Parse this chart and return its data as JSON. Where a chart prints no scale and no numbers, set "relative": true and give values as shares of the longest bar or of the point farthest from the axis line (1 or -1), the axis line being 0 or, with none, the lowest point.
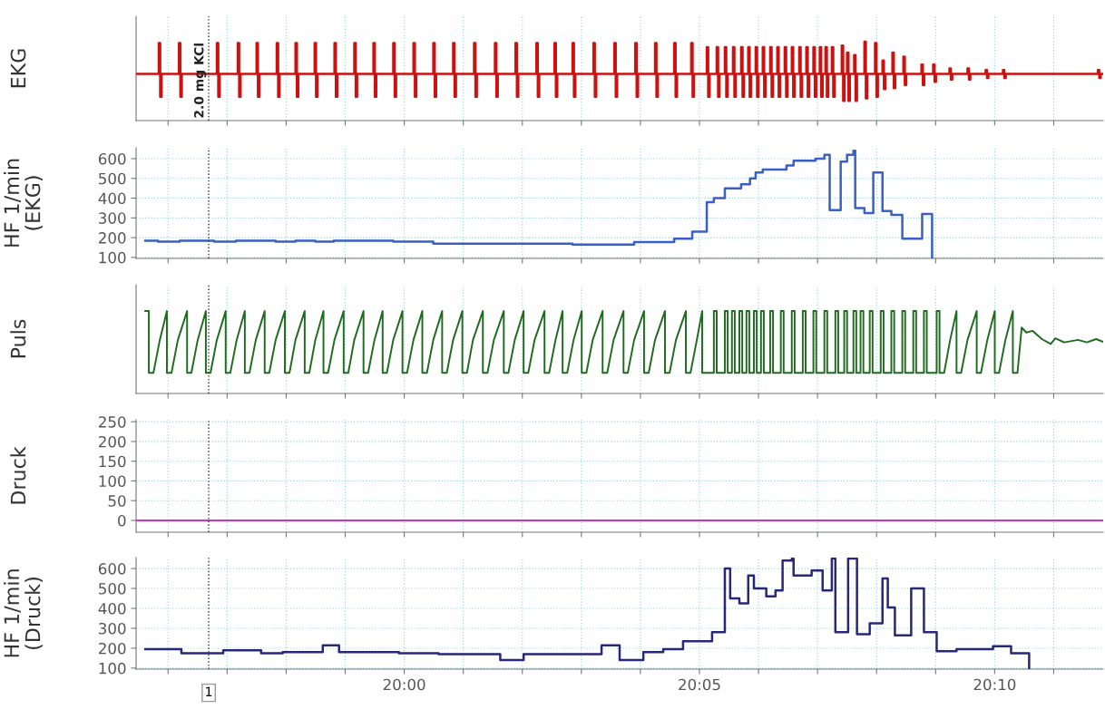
{
  "chart_data": [
    {
      "type": "step",
      "ylabel": "EKG",
      "relative": true,
      "color": "#cc1111",
      "grid": "x",
      "tick_labels": false,
      "xlim": [
        19.9243,
        20.1973
      ],
      "xticks": [
        {
          "value": 19.933333,
          "label": null
        },
        {
          "value": 19.95,
          "label": null
        },
        {
          "value": 19.966667,
          "label": null
        },
        {
          "value": 19.983333,
          "label": null
        },
        {
          "value": 20,
          "label": null
        },
        {
          "value": 20.016667,
          "label": null
        },
        {
          "value": 20.033333,
          "label": null
        },
        {
          "value": 20.05,
          "label": null
        },
        {
          "value": 20.066667,
          "label": null
        },
        {
          "value": 20.083333,
          "label": null
        },
        {
          "value": 20.1,
          "label": null
        },
        {
          "value": 20.116667,
          "label": null
        },
        {
          "value": 20.133333,
          "label": null
        },
        {
          "value": 20.15,
          "label": null
        },
        {
          "value": 20.166667,
          "label": null
        },
        {
          "value": 20.183333,
          "label": null
        }
      ],
      "ref_lines": [
        {
          "axis": "x",
          "value": 19.9448,
          "label": "2.0 mg KCl",
          "color": "#333333",
          "line_style": "dotted"
        }
      ],
      "x": [
        19.9243,
        19.9307,
        19.9311,
        19.9315,
        19.9364,
        19.9368,
        19.9372,
        19.9471,
        19.9475,
        19.9479,
        19.953,
        19.9534,
        19.9538,
        19.9583,
        19.9587,
        19.9591,
        19.964,
        19.9644,
        19.9648,
        19.9693,
        19.9697,
        19.9701,
        19.9747,
        19.9751,
        19.9755,
        19.9803,
        19.9807,
        19.9811,
        19.9859,
        19.9863,
        19.9867,
        19.9913,
        19.9917,
        19.9921,
        19.9969,
        19.9973,
        19.9977,
        20.0026,
        20.003,
        20.0034,
        20.0082,
        20.0086,
        20.009,
        20.0138,
        20.0142,
        20.0146,
        20.0197,
        20.0201,
        20.0205,
        20.0256,
        20.026,
        20.0264,
        20.0314,
        20.0318,
        20.0322,
        20.0373,
        20.0377,
        20.0381,
        20.0424,
        20.0428,
        20.0432,
        20.0475,
        20.0479,
        20.0483,
        20.0534,
        20.0538,
        20.0542,
        20.0593,
        20.0597,
        20.0601,
        20.0652,
        20.0656,
        20.066,
        20.0708,
        20.0712,
        20.0716,
        20.0762,
        20.0766,
        20.077,
        20.081,
        20.0814,
        20.0818,
        20.0854,
        20.0858,
        20.0862,
        20.0882,
        20.0886,
        20.089,
        20.0905,
        20.0909,
        20.0913,
        20.0928,
        20.0932,
        20.0936,
        20.0951,
        20.0955,
        20.0959,
        20.0971,
        20.0975,
        20.0979,
        20.0992,
        20.0996,
        20.1,
        20.1012,
        20.1016,
        20.102,
        20.1033,
        20.1037,
        20.1041,
        20.1053,
        20.1057,
        20.1061,
        20.1074,
        20.1078,
        20.1082,
        20.1094,
        20.1098,
        20.1102,
        20.1115,
        20.1119,
        20.1123,
        20.1135,
        20.1139,
        20.1143,
        20.1155,
        20.1159,
        20.1163,
        20.1173,
        20.1177,
        20.1181,
        20.1189,
        20.1193,
        20.1197,
        20.1207,
        20.1211,
        20.1215,
        20.1235,
        20.1239,
        20.1243,
        20.125,
        20.1254,
        20.1258,
        20.127,
        20.1274,
        20.1278,
        20.1299,
        20.1303,
        20.1307,
        20.1329,
        20.1333,
        20.1337,
        20.135,
        20.1354,
        20.1358,
        20.1378,
        20.1382,
        20.1386,
        20.1409,
        20.1413,
        20.1417,
        20.146,
        20.1464,
        20.1468,
        20.1493,
        20.1497,
        20.1501,
        20.1539,
        20.1543,
        20.1547,
        20.159,
        20.1594,
        20.1598,
        20.1641,
        20.1645,
        20.1649,
        20.169,
        20.1694,
        20.1698,
        20.1958,
        20.1962,
        20.1966,
        20.1973
      ],
      "values": [
        0.59,
        0.98,
        0.3,
        0.59,
        0.98,
        0.3,
        0.59,
        0.98,
        0.3,
        0.59,
        0.98,
        0.3,
        0.59,
        0.98,
        0.3,
        0.59,
        0.98,
        0.3,
        0.59,
        0.98,
        0.3,
        0.59,
        0.98,
        0.3,
        0.59,
        0.98,
        0.3,
        0.59,
        0.98,
        0.3,
        0.59,
        0.98,
        0.3,
        0.59,
        0.98,
        0.3,
        0.59,
        0.98,
        0.3,
        0.59,
        0.98,
        0.3,
        0.59,
        0.98,
        0.3,
        0.59,
        0.98,
        0.3,
        0.59,
        0.98,
        0.3,
        0.59,
        0.98,
        0.3,
        0.59,
        0.98,
        0.3,
        0.59,
        0.98,
        0.3,
        0.59,
        0.98,
        0.3,
        0.59,
        0.98,
        0.3,
        0.59,
        0.98,
        0.3,
        0.59,
        0.98,
        0.3,
        0.59,
        0.98,
        0.3,
        0.59,
        0.98,
        0.3,
        0.59,
        0.98,
        0.3,
        0.59,
        0.93,
        0.3,
        0.59,
        0.93,
        0.3,
        0.59,
        0.93,
        0.3,
        0.59,
        0.93,
        0.3,
        0.59,
        0.93,
        0.3,
        0.59,
        0.93,
        0.3,
        0.59,
        0.93,
        0.3,
        0.59,
        0.93,
        0.3,
        0.59,
        0.93,
        0.3,
        0.59,
        0.93,
        0.3,
        0.59,
        0.93,
        0.3,
        0.59,
        0.93,
        0.3,
        0.59,
        0.93,
        0.3,
        0.59,
        0.93,
        0.3,
        0.59,
        0.93,
        0.3,
        0.59,
        0.93,
        0.3,
        0.59,
        0.93,
        0.3,
        0.59,
        0.93,
        0.3,
        0.59,
        0.95,
        0.25,
        0.59,
        0.86,
        0.25,
        0.59,
        0.83,
        0.25,
        0.59,
        1.0,
        0.28,
        0.59,
        0.98,
        0.3,
        0.59,
        0.76,
        0.4,
        0.59,
        0.86,
        0.41,
        0.59,
        0.81,
        0.45,
        0.59,
        0.71,
        0.45,
        0.59,
        0.71,
        0.49,
        0.59,
        0.66,
        0.52,
        0.59,
        0.66,
        0.52,
        0.59,
        0.64,
        0.54,
        0.59,
        0.64,
        0.54,
        0.59,
        0.64,
        0.54,
        0.59,
        0.59
      ]
    },
    {
      "type": "step",
      "ylabel": "HF 1/min\n(EKG)",
      "color": "#3a5fc5",
      "grid": true,
      "tick_labels": "y",
      "xlim": [
        19.9243,
        20.1973
      ],
      "xticks": [
        {
          "value": 19.933333,
          "label": null
        },
        {
          "value": 19.95,
          "label": null
        },
        {
          "value": 19.966667,
          "label": null
        },
        {
          "value": 19.983333,
          "label": null
        },
        {
          "value": 20,
          "label": null
        },
        {
          "value": 20.016667,
          "label": null
        },
        {
          "value": 20.033333,
          "label": null
        },
        {
          "value": 20.05,
          "label": null
        },
        {
          "value": 20.066667,
          "label": null
        },
        {
          "value": 20.083333,
          "label": null
        },
        {
          "value": 20.1,
          "label": null
        },
        {
          "value": 20.116667,
          "label": null
        },
        {
          "value": 20.133333,
          "label": null
        },
        {
          "value": 20.15,
          "label": null
        },
        {
          "value": 20.166667,
          "label": null
        },
        {
          "value": 20.183333,
          "label": null
        }
      ],
      "ylim": [
        95,
        655
      ],
      "yticks": [
        100,
        200,
        300,
        400,
        500,
        600
      ],
      "ref_lines": [
        {
          "axis": "x",
          "value": 19.9448,
          "color": "#333333",
          "line_style": "dotted"
        }
      ],
      "x": [
        19.9269,
        19.9305,
        19.9366,
        19.9463,
        19.9525,
        19.9637,
        19.9693,
        19.9749,
        19.9801,
        19.9969,
        20.0082,
        20.0475,
        20.0649,
        20.0762,
        20.0813,
        20.0854,
        20.0874,
        20.0905,
        20.0951,
        20.0976,
        20.0992,
        20.1012,
        20.1079,
        20.1099,
        20.1161,
        20.1186,
        20.1201,
        20.1232,
        20.125,
        20.1268,
        20.1273,
        20.1299,
        20.1324,
        20.135,
        20.1375,
        20.1406,
        20.1462,
        20.149
      ],
      "values": [
        185,
        180,
        185,
        180,
        185,
        180,
        185,
        180,
        185,
        180,
        170,
        165,
        178,
        195,
        230,
        380,
        400,
        450,
        470,
        500,
        530,
        545,
        565,
        590,
        600,
        620,
        340,
        585,
        620,
        640,
        350,
        325,
        530,
        335,
        315,
        195,
        320,
        100
      ]
    },
    {
      "type": "line",
      "ylabel": "Puls",
      "relative": true,
      "color": "#1f6b1f",
      "grid": "x",
      "tick_labels": false,
      "xlim": [
        19.9243,
        20.1973
      ],
      "xticks": [
        {
          "value": 19.933333,
          "label": null
        },
        {
          "value": 19.95,
          "label": null
        },
        {
          "value": 19.966667,
          "label": null
        },
        {
          "value": 19.983333,
          "label": null
        },
        {
          "value": 20,
          "label": null
        },
        {
          "value": 20.016667,
          "label": null
        },
        {
          "value": 20.033333,
          "label": null
        },
        {
          "value": 20.05,
          "label": null
        },
        {
          "value": 20.066667,
          "label": null
        },
        {
          "value": 20.083333,
          "label": null
        },
        {
          "value": 20.1,
          "label": null
        },
        {
          "value": 20.116667,
          "label": null
        },
        {
          "value": 20.133333,
          "label": null
        },
        {
          "value": 20.15,
          "label": null
        },
        {
          "value": 20.166667,
          "label": null
        },
        {
          "value": 20.183333,
          "label": null
        }
      ],
      "ref_lines": [
        {
          "axis": "x",
          "value": 19.9448,
          "color": "#333333",
          "line_style": "dotted"
        }
      ],
      "x": [
        19.9269,
        19.9279,
        19.9279,
        19.9292,
        19.931,
        19.933,
        19.933,
        19.9343,
        19.9361,
        19.9387,
        19.9387,
        19.9399,
        19.9417,
        19.944,
        19.944,
        19.9453,
        19.9471,
        19.9496,
        19.9496,
        19.9509,
        19.9527,
        19.955,
        19.955,
        19.9563,
        19.9581,
        19.9606,
        19.9606,
        19.9619,
        19.9637,
        19.9663,
        19.9663,
        19.9676,
        19.9693,
        19.9719,
        19.9719,
        19.9732,
        19.9749,
        19.9772,
        19.9772,
        19.9785,
        19.9803,
        19.9829,
        19.9829,
        19.9842,
        19.9859,
        19.9885,
        19.9885,
        19.9898,
        19.9916,
        19.9939,
        19.9939,
        19.9951,
        19.9969,
        19.9995,
        19.9995,
        20.0008,
        20.0026,
        20.0051,
        20.0051,
        20.0064,
        20.0082,
        20.0107,
        20.0107,
        20.012,
        20.0138,
        20.0164,
        20.0164,
        20.0177,
        20.0194,
        20.0222,
        20.0222,
        20.0235,
        20.0253,
        20.0281,
        20.0281,
        20.0294,
        20.0312,
        20.0337,
        20.0337,
        20.035,
        20.0368,
        20.0396,
        20.0396,
        20.0409,
        20.0427,
        20.0447,
        20.0447,
        20.046,
        20.0478,
        20.0501,
        20.0501,
        20.0514,
        20.0532,
        20.056,
        20.056,
        20.0573,
        20.0591,
        20.0619,
        20.0619,
        20.0631,
        20.0649,
        20.0677,
        20.0677,
        20.069,
        20.0708,
        20.0736,
        20.0736,
        20.0749,
        20.0767,
        20.0795,
        20.0795,
        20.0808,
        20.0826,
        20.0841,
        20.0841,
        20.0854,
        20.0874,
        20.0874,
        20.0882,
        20.0882,
        20.0905,
        20.0905,
        20.0913,
        20.0913,
        20.0925,
        20.0925,
        20.0933,
        20.0933,
        20.0946,
        20.0946,
        20.0954,
        20.0954,
        20.0966,
        20.0966,
        20.0974,
        20.0974,
        20.0987,
        20.0987,
        20.0995,
        20.0995,
        20.1007,
        20.1007,
        20.1015,
        20.1015,
        20.1033,
        20.1033,
        20.1041,
        20.1041,
        20.1063,
        20.1063,
        20.1071,
        20.1071,
        20.1094,
        20.1094,
        20.1102,
        20.1102,
        20.1125,
        20.1125,
        20.1133,
        20.1133,
        20.1155,
        20.1155,
        20.1163,
        20.1163,
        20.1186,
        20.1186,
        20.1194,
        20.1194,
        20.1217,
        20.1217,
        20.1225,
        20.1225,
        20.1242,
        20.1242,
        20.125,
        20.125,
        20.1268,
        20.1268,
        20.1276,
        20.1276,
        20.1288,
        20.1288,
        20.1296,
        20.1296,
        20.1314,
        20.1314,
        20.1322,
        20.1322,
        20.1345,
        20.1345,
        20.1353,
        20.1353,
        20.1375,
        20.1375,
        20.1383,
        20.1383,
        20.1406,
        20.1406,
        20.1414,
        20.1414,
        20.1437,
        20.1437,
        20.1445,
        20.1445,
        20.1467,
        20.1467,
        20.1475,
        20.1475,
        20.1503,
        20.1503,
        20.1511,
        20.1511,
        20.1524,
        20.1541,
        20.1559,
        20.1559,
        20.1572,
        20.159,
        20.1616,
        20.1616,
        20.1628,
        20.1646,
        20.1667,
        20.1667,
        20.1679,
        20.1697,
        20.1718,
        20.1718,
        20.1731,
        20.1743,
        20.1756,
        20.1774,
        20.18,
        20.1825,
        20.1838,
        20.1863,
        20.1902,
        20.1927,
        20.1953,
        20.1971
      ],
      "values": [
        1.0,
        1.0,
        0.25,
        0.25,
        0.65,
        1.0,
        0.25,
        0.25,
        0.65,
        1.0,
        0.25,
        0.25,
        0.65,
        1.0,
        0.25,
        0.25,
        0.65,
        1.0,
        0.25,
        0.25,
        0.65,
        1.0,
        0.25,
        0.25,
        0.65,
        1.0,
        0.25,
        0.25,
        0.65,
        1.0,
        0.25,
        0.25,
        0.65,
        1.0,
        0.25,
        0.25,
        0.65,
        1.0,
        0.25,
        0.25,
        0.65,
        1.0,
        0.25,
        0.25,
        0.65,
        1.0,
        0.25,
        0.25,
        0.65,
        1.0,
        0.25,
        0.25,
        0.65,
        1.0,
        0.25,
        0.25,
        0.65,
        1.0,
        0.25,
        0.25,
        0.65,
        1.0,
        0.25,
        0.25,
        0.65,
        1.0,
        0.25,
        0.25,
        0.65,
        1.0,
        0.25,
        0.25,
        0.65,
        1.0,
        0.25,
        0.25,
        0.65,
        1.0,
        0.25,
        0.25,
        0.65,
        1.0,
        0.25,
        0.25,
        0.65,
        1.0,
        0.25,
        0.25,
        0.65,
        1.0,
        0.25,
        0.25,
        0.65,
        1.0,
        0.25,
        0.25,
        0.65,
        1.0,
        0.25,
        0.25,
        0.65,
        1.0,
        0.25,
        0.25,
        0.65,
        1.0,
        0.25,
        0.25,
        0.65,
        1.0,
        0.25,
        0.25,
        0.65,
        1.0,
        0.25,
        0.25,
        0.25,
        1.0,
        1.0,
        0.25,
        0.25,
        1.0,
        1.0,
        0.25,
        0.25,
        1.0,
        1.0,
        0.25,
        0.25,
        1.0,
        1.0,
        0.25,
        0.25,
        1.0,
        1.0,
        0.25,
        0.25,
        1.0,
        1.0,
        0.25,
        0.25,
        1.0,
        1.0,
        0.25,
        0.25,
        1.0,
        1.0,
        0.25,
        0.25,
        1.0,
        1.0,
        0.25,
        0.25,
        1.0,
        1.0,
        0.25,
        0.25,
        1.0,
        1.0,
        0.25,
        0.25,
        1.0,
        1.0,
        0.25,
        0.25,
        1.0,
        1.0,
        0.25,
        0.25,
        1.0,
        1.0,
        0.25,
        0.25,
        1.0,
        1.0,
        0.25,
        0.25,
        1.0,
        1.0,
        0.25,
        0.25,
        1.0,
        1.0,
        0.25,
        0.25,
        1.0,
        1.0,
        0.25,
        0.25,
        1.0,
        1.0,
        0.25,
        0.25,
        1.0,
        1.0,
        0.25,
        0.25,
        1.0,
        1.0,
        0.25,
        0.25,
        1.0,
        1.0,
        0.25,
        0.25,
        1.0,
        1.0,
        0.25,
        0.25,
        1.0,
        1.0,
        0.25,
        0.25,
        0.65,
        1.0,
        0.25,
        0.25,
        0.65,
        1.0,
        0.25,
        0.25,
        0.65,
        1.0,
        0.25,
        0.25,
        0.65,
        1.0,
        0.25,
        0.25,
        0.8,
        0.74,
        0.76,
        0.66,
        0.6,
        0.67,
        0.62,
        0.65,
        0.62,
        0.66,
        0.63
      ]
    },
    {
      "type": "line",
      "ylabel": "Druck",
      "color": "#cc33cc",
      "grid": true,
      "tick_labels": "y",
      "xlim": [
        19.9243,
        20.1973
      ],
      "xticks": [
        {
          "value": 19.933333,
          "label": null
        },
        {
          "value": 19.95,
          "label": null
        },
        {
          "value": 19.966667,
          "label": null
        },
        {
          "value": 19.983333,
          "label": null
        },
        {
          "value": 20,
          "label": null
        },
        {
          "value": 20.016667,
          "label": null
        },
        {
          "value": 20.033333,
          "label": null
        },
        {
          "value": 20.05,
          "label": null
        },
        {
          "value": 20.066667,
          "label": null
        },
        {
          "value": 20.083333,
          "label": null
        },
        {
          "value": 20.1,
          "label": null
        },
        {
          "value": 20.116667,
          "label": null
        },
        {
          "value": 20.133333,
          "label": null
        },
        {
          "value": 20.15,
          "label": null
        },
        {
          "value": 20.166667,
          "label": null
        },
        {
          "value": 20.183333,
          "label": null
        }
      ],
      "ylim": [
        -30,
        255
      ],
      "yticks": [
        0,
        50,
        100,
        150,
        200,
        250
      ],
      "ref_lines": [
        {
          "axis": "x",
          "value": 19.9448,
          "color": "#333333",
          "line_style": "dotted"
        }
      ],
      "x": [
        19.9243,
        20.1973
      ],
      "values": [
        0,
        0
      ]
    },
    {
      "type": "step",
      "ylabel": "HF 1/min\n(Druck)",
      "color": "#28287a",
      "grid": true,
      "xlim": [
        19.9243,
        20.1973
      ],
      "xticks": [
        {
          "value": 19.933333,
          "label": null
        },
        {
          "value": 19.95,
          "label": null
        },
        {
          "value": 19.966667,
          "label": null
        },
        {
          "value": 19.983333,
          "label": null
        },
        {
          "value": 20,
          "label": "20:00"
        },
        {
          "value": 20.016667,
          "label": null
        },
        {
          "value": 20.033333,
          "label": null
        },
        {
          "value": 20.05,
          "label": null
        },
        {
          "value": 20.066667,
          "label": null
        },
        {
          "value": 20.083333,
          "label": "20:05"
        },
        {
          "value": 20.1,
          "label": null
        },
        {
          "value": 20.116667,
          "label": null
        },
        {
          "value": 20.133333,
          "label": null
        },
        {
          "value": 20.15,
          "label": null
        },
        {
          "value": 20.166667,
          "label": "20:10"
        },
        {
          "value": 20.183333,
          "label": null
        }
      ],
      "ylim": [
        95,
        655
      ],
      "yticks": [
        100,
        200,
        300,
        400,
        500,
        600
      ],
      "ref_lines": [
        {
          "axis": "x",
          "value": 19.9448,
          "color": "#333333",
          "line_style": "dotted"
        }
      ],
      "annotations": [
        "1"
      ],
      "x": [
        19.9269,
        19.9371,
        19.9489,
        19.9596,
        19.9657,
        19.977,
        19.9816,
        19.9985,
        20.0097,
        20.0271,
        20.0337,
        20.0557,
        20.0608,
        20.0675,
        20.0731,
        20.0787,
        20.0869,
        20.0905,
        20.092,
        20.0946,
        20.0971,
        20.0987,
        20.1022,
        20.1048,
        20.1068,
        20.1094,
        20.1099,
        20.115,
        20.1181,
        20.1207,
        20.1217,
        20.1253,
        20.1278,
        20.1314,
        20.135,
        20.1365,
        20.1385,
        20.1431,
        20.1467,
        20.1503,
        20.1559,
        20.1662,
        20.1713,
        20.1764
      ],
      "values": [
        195,
        175,
        190,
        175,
        180,
        215,
        180,
        175,
        170,
        140,
        170,
        215,
        140,
        180,
        195,
        235,
        280,
        600,
        450,
        425,
        565,
        500,
        460,
        490,
        640,
        650,
        565,
        590,
        490,
        650,
        280,
        650,
        270,
        325,
        550,
        405,
        265,
        500,
        280,
        185,
        195,
        210,
        175,
        100
      ]
    }
  ]
}
